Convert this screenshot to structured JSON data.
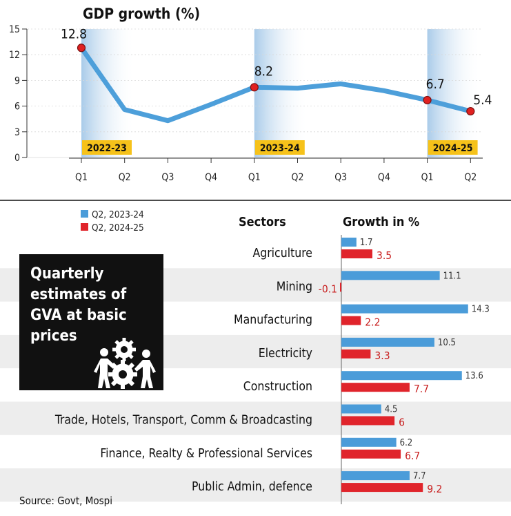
{
  "chart_data": [
    {
      "type": "line",
      "title": "GDP growth (%)",
      "x": [
        "Q1",
        "Q2",
        "Q3",
        "Q4",
        "Q1",
        "Q2",
        "Q3",
        "Q4",
        "Q1",
        "Q2"
      ],
      "fiscal_years": [
        "2022-23",
        "2023-24",
        "2024-25"
      ],
      "values": [
        12.8,
        5.6,
        4.3,
        6.2,
        8.2,
        8.1,
        8.6,
        7.8,
        6.7,
        5.4
      ],
      "labeled_values": {
        "0": "12.8",
        "4": "8.2",
        "8": "6.7",
        "9": "5.4"
      },
      "yticks": [
        "15",
        "12",
        "9",
        "6",
        "3",
        "0"
      ],
      "ylim": [
        0,
        15
      ],
      "colors": {
        "line": "#4d9fda",
        "marker": "#e02020",
        "band": "#a9cbe9",
        "year_label": "#f6c21a"
      }
    },
    {
      "type": "bar",
      "title": "Quarterly estimates of GVA at basic prices",
      "header_sectors": "Sectors",
      "header_growth": "Growth in %",
      "categories": [
        "Agriculture",
        "Mining",
        "Manufacturing",
        "Electricity",
        "Construction",
        "Trade, Hotels, Transport, Comm & Broadcasting",
        "Finance, Realty & Professional Services",
        "Public Admin, defence"
      ],
      "series": [
        {
          "name": "Q2, 2023-24",
          "color": "#4b9cd9",
          "values": [
            1.7,
            11.1,
            14.3,
            10.5,
            13.6,
            4.5,
            6.2,
            7.7
          ],
          "labels": [
            "1.7",
            "11.1",
            "14.3",
            "10.5",
            "13.6",
            "4.5",
            "6.2",
            "7.7"
          ]
        },
        {
          "name": "Q2, 2024-25",
          "color": "#e0242b",
          "values": [
            3.5,
            -0.1,
            2.2,
            3.3,
            7.7,
            6,
            6.7,
            9.2
          ],
          "labels": [
            "3.5",
            "-0.1",
            "2.2",
            "3.3",
            "7.7",
            "6",
            "6.7",
            "9.2"
          ]
        }
      ]
    }
  ],
  "box": {
    "lines": [
      "Quarterly",
      "estimates of",
      "GVA at basic",
      "prices"
    ]
  },
  "source": "Source: Govt, Mospi"
}
